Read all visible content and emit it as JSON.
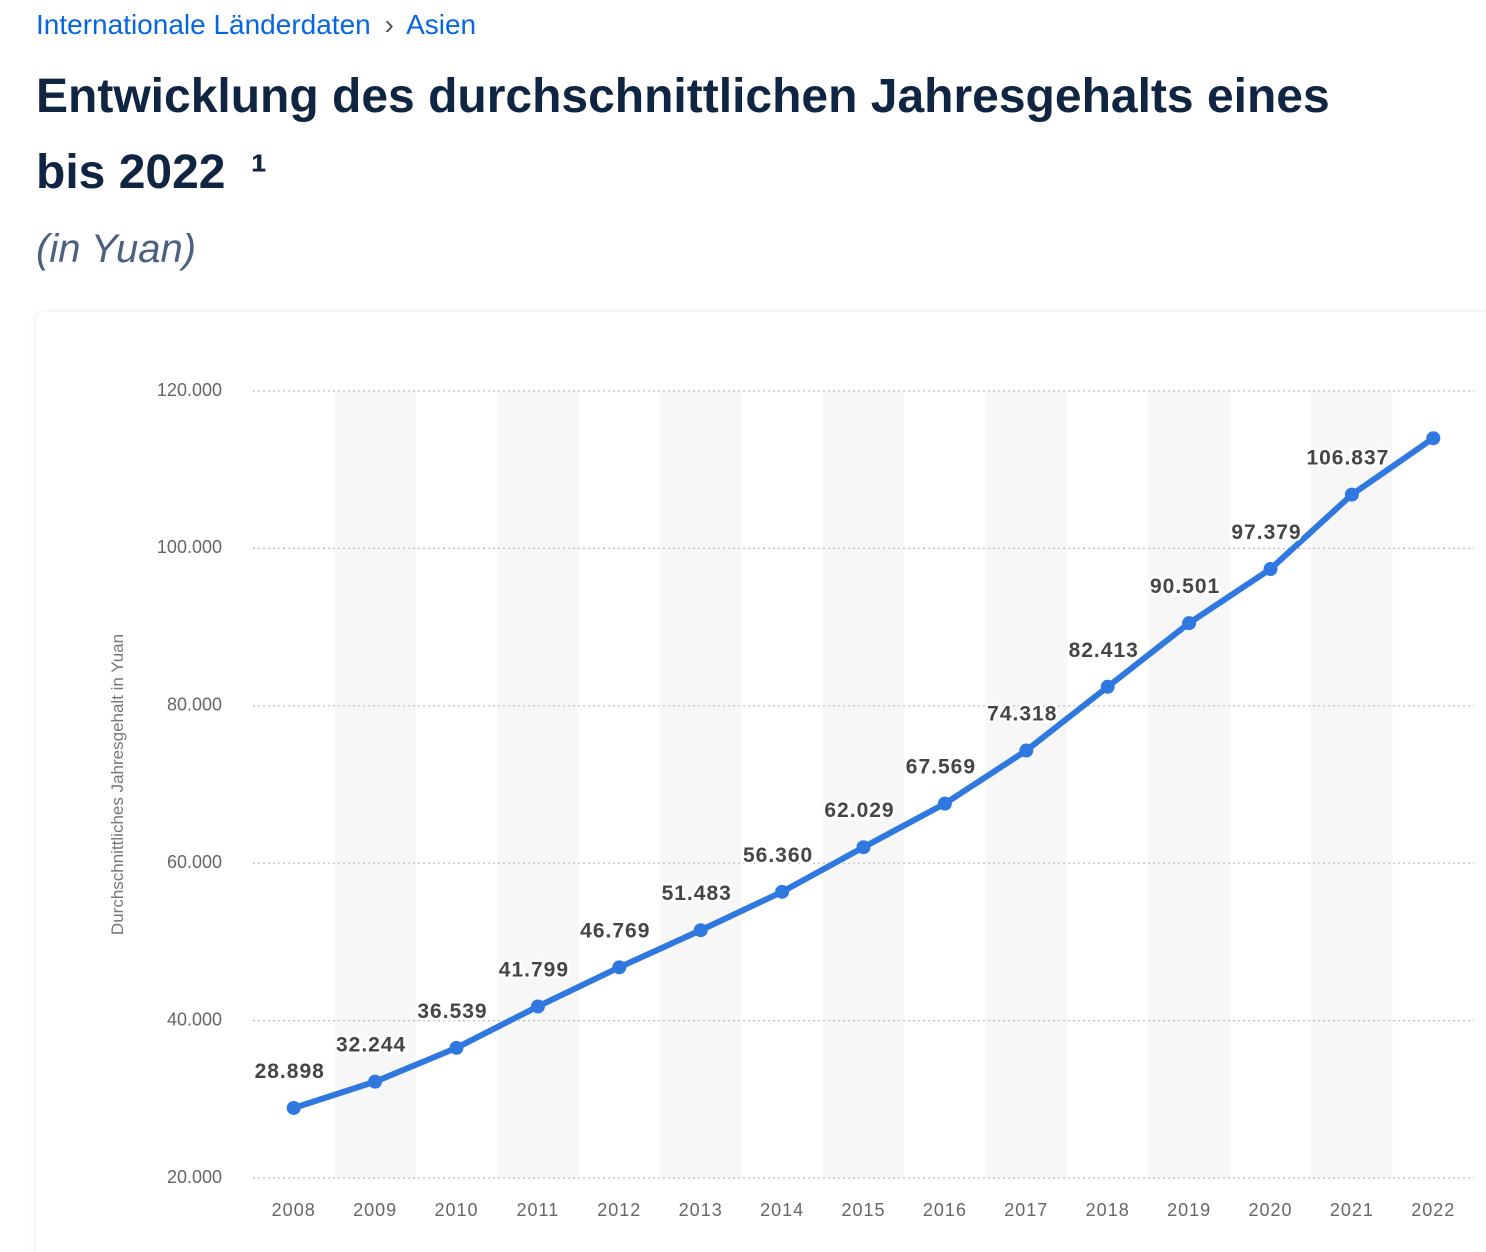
{
  "breadcrumb": [
    "Internationale Länderdaten",
    "Asien"
  ],
  "breadcrumb_separator": "›",
  "title_lines": [
    "Entwicklung des durchschnittlichen Jahresgehalts eines",
    "bis 2022"
  ],
  "title_footnote": "¹",
  "subtitle": "(in Yuan)",
  "chart_data": {
    "type": "line",
    "y_axis_label": "Durchschnittliches Jahresgehalt in Yuan",
    "categories": [
      "2008",
      "2009",
      "2010",
      "2011",
      "2012",
      "2013",
      "2014",
      "2015",
      "2016",
      "2017",
      "2018",
      "2019",
      "2020",
      "2021",
      "2022"
    ],
    "values": [
      28898,
      32244,
      36539,
      41799,
      46769,
      51483,
      56360,
      62029,
      67569,
      74318,
      82413,
      90501,
      97379,
      106837,
      114000
    ],
    "value_labels": [
      "28.898",
      "32.244",
      "36.539",
      "41.799",
      "46.769",
      "51.483",
      "56.360",
      "62.029",
      "67.569",
      "74.318",
      "82.413",
      "90.501",
      "97.379",
      "106.837",
      null
    ],
    "color": "#2f78e0",
    "ylim": [
      20000,
      120000
    ],
    "yticks": [
      {
        "value": 20000,
        "label": "20.000"
      },
      {
        "value": 40000,
        "label": "40.000"
      },
      {
        "value": 60000,
        "label": "60.000"
      },
      {
        "value": 80000,
        "label": "80.000"
      },
      {
        "value": 100000,
        "label": "100.000"
      },
      {
        "value": 120000,
        "label": "120.000"
      }
    ],
    "grid": true
  }
}
